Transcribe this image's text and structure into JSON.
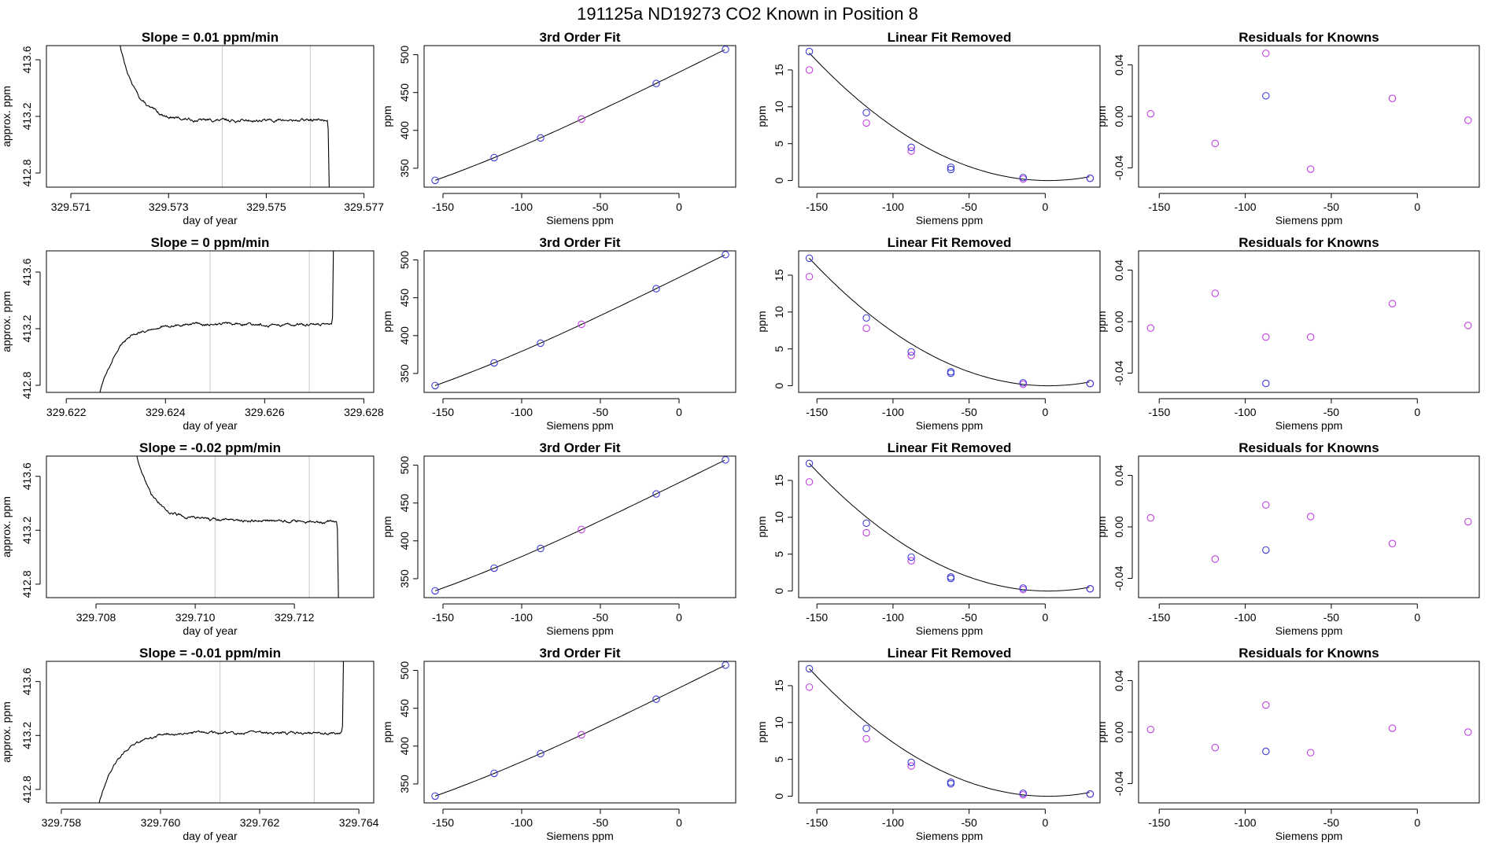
{
  "figure_title": "191125a      ND19273    CO2 Known in Position  8",
  "colors": {
    "line": "#000000",
    "box": "#000000",
    "vline": "#c8c8c8",
    "points_blue": "#3b3bd6",
    "points_magenta": "#c040e0"
  },
  "labels": {
    "day_of_year": "day of year",
    "approx_ppm": "approx. ppm",
    "siemens_ppm": "Siemens ppm",
    "ppm": "ppm",
    "fit_title": "3rd Order Fit",
    "lin_title": "Linear Fit Removed",
    "res_title": "Residuals for Knowns"
  },
  "chart_data": [
    {
      "row": 1,
      "panel": "time_series",
      "type": "line",
      "title": "Slope =  0.01  ppm/min",
      "xlabel": "day of year",
      "ylabel": "approx. ppm",
      "xlim": [
        329.5705,
        329.5772
      ],
      "ylim": [
        412.7,
        413.7
      ],
      "xticks": [
        "329.571",
        "329.573",
        "329.575",
        "329.577"
      ],
      "xtick_values": [
        329.571,
        329.573,
        329.575,
        329.577
      ],
      "yticks": [
        "412.8",
        "413.2",
        "413.6"
      ],
      "ytick_values": [
        412.8,
        413.2,
        413.6
      ],
      "vlines": [
        329.5741,
        329.5759
      ],
      "shape": "descending",
      "t_start": 329.5719,
      "t_end": 329.57625,
      "plateau": 413.17,
      "slope_level": 0.01
    },
    {
      "row": 1,
      "panel": "fit",
      "type": "scatter",
      "title": "3rd Order Fit",
      "xlabel": "Siemens ppm",
      "ylabel": "ppm",
      "xlim": [
        -162,
        36
      ],
      "ylim": [
        325,
        512
      ],
      "xticks": [
        "-150",
        "-100",
        "-50",
        "0"
      ],
      "xtick_values": [
        -150,
        -100,
        -50,
        0
      ],
      "yticks": [
        "350",
        "400",
        "450",
        "500"
      ],
      "ytick_values": [
        350,
        400,
        450,
        500
      ],
      "points_blue": [
        [
          -155,
          334
        ],
        [
          -117.5,
          364
        ],
        [
          -88,
          390
        ],
        [
          -14.5,
          462
        ],
        [
          29.5,
          507
        ]
      ],
      "points_magenta": [
        [
          -62,
          415
        ]
      ],
      "curve": "fit"
    },
    {
      "row": 1,
      "panel": "linear_removed",
      "type": "scatter",
      "title": "Linear Fit Removed",
      "xlabel": "Siemens ppm",
      "ylabel": "ppm",
      "xlim": [
        -162,
        36
      ],
      "ylim": [
        -0.9,
        18.3
      ],
      "xticks": [
        "-150",
        "-100",
        "-50",
        "0"
      ],
      "xtick_values": [
        -150,
        -100,
        -50,
        0
      ],
      "yticks": [
        "0",
        "5",
        "10",
        "15"
      ],
      "ytick_values": [
        0,
        5,
        10,
        15
      ],
      "points_blue": [
        [
          -155,
          17.5
        ],
        [
          -117.5,
          9.2
        ],
        [
          -88,
          4.5
        ],
        [
          -62,
          1.8
        ],
        [
          -62,
          1.5
        ],
        [
          -14.5,
          0.4
        ],
        [
          29.5,
          0.3
        ]
      ],
      "points_magenta": [
        [
          -155,
          15
        ],
        [
          -117.5,
          7.8
        ],
        [
          -88,
          4
        ],
        [
          -14.5,
          0.2
        ],
        [
          29.5,
          0.3
        ]
      ],
      "curve": "parabola"
    },
    {
      "row": 1,
      "panel": "residuals",
      "type": "scatter",
      "title": "Residuals for Knowns",
      "xlabel": "Siemens ppm",
      "ylabel": "ppm",
      "xlim": [
        -162,
        36
      ],
      "ylim": [
        -0.055,
        0.055
      ],
      "xticks": [
        "-150",
        "-100",
        "-50",
        "0"
      ],
      "xtick_values": [
        -150,
        -100,
        -50,
        0
      ],
      "yticks": [
        "-0.04",
        "0.00",
        "0.04"
      ],
      "ytick_values": [
        -0.04,
        0.0,
        0.04
      ],
      "points_blue": [
        [
          -88,
          0.016
        ]
      ],
      "points_magenta": [
        [
          -155,
          0.002
        ],
        [
          -117.5,
          -0.021
        ],
        [
          -88,
          0.049
        ],
        [
          -62,
          -0.041
        ],
        [
          -14.5,
          0.014
        ],
        [
          29.5,
          -0.003
        ]
      ]
    },
    {
      "row": 2,
      "panel": "time_series",
      "type": "line",
      "title": "Slope =  0  ppm/min",
      "xlabel": "day of year",
      "ylabel": "approx. ppm",
      "xlim": [
        329.6216,
        329.6282
      ],
      "ylim": [
        412.75,
        413.75
      ],
      "xticks": [
        "329.622",
        "329.624",
        "329.626",
        "329.628"
      ],
      "xtick_values": [
        329.622,
        329.624,
        329.626,
        329.628
      ],
      "yticks": [
        "412.8",
        "413.2",
        "413.6"
      ],
      "ytick_values": [
        412.8,
        413.2,
        413.6
      ],
      "vlines": [
        329.6249,
        329.6269
      ],
      "shape": "ascending",
      "t_start": 329.6226,
      "t_end": 329.62735,
      "plateau": 413.23,
      "slope_level": 0.0
    },
    {
      "row": 2,
      "panel": "fit",
      "type": "scatter",
      "title": "3rd Order Fit",
      "xlabel": "Siemens ppm",
      "ylabel": "ppm",
      "xlim": [
        -162,
        36
      ],
      "ylim": [
        325,
        512
      ],
      "xticks": [
        "-150",
        "-100",
        "-50",
        "0"
      ],
      "xtick_values": [
        -150,
        -100,
        -50,
        0
      ],
      "yticks": [
        "350",
        "400",
        "450",
        "500"
      ],
      "ytick_values": [
        350,
        400,
        450,
        500
      ],
      "points_blue": [
        [
          -155,
          334
        ],
        [
          -117.5,
          364
        ],
        [
          -88,
          390
        ],
        [
          -14.5,
          462
        ],
        [
          29.5,
          507
        ]
      ],
      "points_magenta": [
        [
          -62,
          415
        ]
      ],
      "curve": "fit"
    },
    {
      "row": 2,
      "panel": "linear_removed",
      "type": "scatter",
      "title": "Linear Fit Removed",
      "xlabel": "Siemens ppm",
      "ylabel": "ppm",
      "xlim": [
        -162,
        36
      ],
      "ylim": [
        -0.9,
        18.3
      ],
      "xticks": [
        "-150",
        "-100",
        "-50",
        "0"
      ],
      "xtick_values": [
        -150,
        -100,
        -50,
        0
      ],
      "yticks": [
        "0",
        "5",
        "10",
        "15"
      ],
      "ytick_values": [
        0,
        5,
        10,
        15
      ],
      "points_blue": [
        [
          -155,
          17.3
        ],
        [
          -117.5,
          9.2
        ],
        [
          -88,
          4.6
        ],
        [
          -62,
          1.9
        ],
        [
          -62,
          1.7
        ],
        [
          -14.5,
          0.4
        ],
        [
          29.5,
          0.3
        ]
      ],
      "points_magenta": [
        [
          -155,
          14.8
        ],
        [
          -117.5,
          7.8
        ],
        [
          -88,
          4.1
        ],
        [
          -14.5,
          0.2
        ],
        [
          29.5,
          0.3
        ]
      ],
      "curve": "parabola"
    },
    {
      "row": 2,
      "panel": "residuals",
      "type": "scatter",
      "title": "Residuals for Knowns",
      "xlabel": "Siemens ppm",
      "ylabel": "ppm",
      "xlim": [
        -162,
        36
      ],
      "ylim": [
        -0.055,
        0.055
      ],
      "xticks": [
        "-150",
        "-100",
        "-50",
        "0"
      ],
      "xtick_values": [
        -150,
        -100,
        -50,
        0
      ],
      "yticks": [
        "-0.04",
        "0.00",
        "0.04"
      ],
      "ytick_values": [
        -0.04,
        0.0,
        0.04
      ],
      "points_blue": [
        [
          -88,
          -0.048
        ]
      ],
      "points_magenta": [
        [
          -155,
          -0.005
        ],
        [
          -117.5,
          0.022
        ],
        [
          -88,
          -0.012
        ],
        [
          -62,
          -0.012
        ],
        [
          -14.5,
          0.014
        ],
        [
          29.5,
          -0.003
        ]
      ]
    },
    {
      "row": 3,
      "panel": "time_series",
      "type": "line",
      "title": "Slope =  -0.02  ppm/min",
      "xlabel": "day of year",
      "ylabel": "approx. ppm",
      "xlim": [
        329.707,
        329.7136
      ],
      "ylim": [
        412.7,
        413.75
      ],
      "xticks": [
        "329.708",
        "329.710",
        "329.712"
      ],
      "xtick_values": [
        329.708,
        329.71,
        329.712
      ],
      "yticks": [
        "412.8",
        "413.2",
        "413.6"
      ],
      "ytick_values": [
        412.8,
        413.2,
        413.6
      ],
      "vlines": [
        329.7104,
        329.7123
      ],
      "shape": "descending",
      "t_start": 329.7087,
      "t_end": 329.71285,
      "plateau": 413.27,
      "slope_level": -0.02
    },
    {
      "row": 3,
      "panel": "fit",
      "type": "scatter",
      "title": "3rd Order Fit",
      "xlabel": "Siemens ppm",
      "ylabel": "ppm",
      "xlim": [
        -162,
        36
      ],
      "ylim": [
        325,
        512
      ],
      "xticks": [
        "-150",
        "-100",
        "-50",
        "0"
      ],
      "xtick_values": [
        -150,
        -100,
        -50,
        0
      ],
      "yticks": [
        "350",
        "400",
        "450",
        "500"
      ],
      "ytick_values": [
        350,
        400,
        450,
        500
      ],
      "points_blue": [
        [
          -155,
          334
        ],
        [
          -117.5,
          364
        ],
        [
          -88,
          390
        ],
        [
          -14.5,
          462
        ],
        [
          29.5,
          507
        ]
      ],
      "points_magenta": [
        [
          -62,
          415
        ]
      ],
      "curve": "fit"
    },
    {
      "row": 3,
      "panel": "linear_removed",
      "type": "scatter",
      "title": "Linear Fit Removed",
      "xlabel": "Siemens ppm",
      "ylabel": "ppm",
      "xlim": [
        -162,
        36
      ],
      "ylim": [
        -0.9,
        18.3
      ],
      "xticks": [
        "-150",
        "-100",
        "-50",
        "0"
      ],
      "xtick_values": [
        -150,
        -100,
        -50,
        0
      ],
      "yticks": [
        "0",
        "5",
        "10",
        "15"
      ],
      "ytick_values": [
        0,
        5,
        10,
        15
      ],
      "points_blue": [
        [
          -155,
          17.3
        ],
        [
          -117.5,
          9.2
        ],
        [
          -88,
          4.6
        ],
        [
          -62,
          1.9
        ],
        [
          -62,
          1.7
        ],
        [
          -14.5,
          0.4
        ],
        [
          29.5,
          0.3
        ]
      ],
      "points_magenta": [
        [
          -155,
          14.8
        ],
        [
          -117.5,
          7.9
        ],
        [
          -88,
          4.1
        ],
        [
          -14.5,
          0.2
        ],
        [
          29.5,
          0.3
        ]
      ],
      "curve": "parabola"
    },
    {
      "row": 3,
      "panel": "residuals",
      "type": "scatter",
      "title": "Residuals for Knowns",
      "xlabel": "Siemens ppm",
      "ylabel": "ppm",
      "xlim": [
        -162,
        36
      ],
      "ylim": [
        -0.055,
        0.055
      ],
      "xticks": [
        "-150",
        "-100",
        "-50",
        "0"
      ],
      "xtick_values": [
        -150,
        -100,
        -50,
        0
      ],
      "yticks": [
        "-0.04",
        "0.00",
        "0.04"
      ],
      "ytick_values": [
        -0.04,
        0.0,
        0.04
      ],
      "points_blue": [
        [
          -88,
          -0.018
        ]
      ],
      "points_magenta": [
        [
          -155,
          0.007
        ],
        [
          -117.5,
          -0.025
        ],
        [
          -88,
          0.017
        ],
        [
          -62,
          0.008
        ],
        [
          -14.5,
          -0.013
        ],
        [
          29.5,
          0.004
        ]
      ]
    },
    {
      "row": 4,
      "panel": "time_series",
      "type": "line",
      "title": "Slope =  -0.01  ppm/min",
      "xlabel": "day of year",
      "ylabel": "approx. ppm",
      "xlim": [
        329.7577,
        329.7643
      ],
      "ylim": [
        412.7,
        413.75
      ],
      "xticks": [
        "329.758",
        "329.760",
        "329.762",
        "329.764"
      ],
      "xtick_values": [
        329.758,
        329.76,
        329.762,
        329.764
      ],
      "yticks": [
        "412.8",
        "413.2",
        "413.6"
      ],
      "ytick_values": [
        412.8,
        413.2,
        413.6
      ],
      "vlines": [
        329.7612,
        329.7631
      ],
      "shape": "ascending",
      "t_start": 329.7587,
      "t_end": 329.76365,
      "plateau": 413.22,
      "slope_level": -0.01
    },
    {
      "row": 4,
      "panel": "fit",
      "type": "scatter",
      "title": "3rd Order Fit",
      "xlabel": "Siemens ppm",
      "ylabel": "ppm",
      "xlim": [
        -162,
        36
      ],
      "ylim": [
        325,
        512
      ],
      "xticks": [
        "-150",
        "-100",
        "-50",
        "0"
      ],
      "xtick_values": [
        -150,
        -100,
        -50,
        0
      ],
      "yticks": [
        "350",
        "400",
        "450",
        "500"
      ],
      "ytick_values": [
        350,
        400,
        450,
        500
      ],
      "points_blue": [
        [
          -155,
          334
        ],
        [
          -117.5,
          364
        ],
        [
          -88,
          390
        ],
        [
          -14.5,
          462
        ],
        [
          29.5,
          507
        ]
      ],
      "points_magenta": [
        [
          -62,
          415
        ]
      ],
      "curve": "fit"
    },
    {
      "row": 4,
      "panel": "linear_removed",
      "type": "scatter",
      "title": "Linear Fit Removed",
      "xlabel": "Siemens ppm",
      "ylabel": "ppm",
      "xlim": [
        -162,
        36
      ],
      "ylim": [
        -0.9,
        18.3
      ],
      "xticks": [
        "-150",
        "-100",
        "-50",
        "0"
      ],
      "xtick_values": [
        -150,
        -100,
        -50,
        0
      ],
      "yticks": [
        "0",
        "5",
        "10",
        "15"
      ],
      "ytick_values": [
        0,
        5,
        10,
        15
      ],
      "points_blue": [
        [
          -155,
          17.3
        ],
        [
          -117.5,
          9.2
        ],
        [
          -88,
          4.6
        ],
        [
          -62,
          1.9
        ],
        [
          -62,
          1.7
        ],
        [
          -14.5,
          0.4
        ],
        [
          29.5,
          0.3
        ]
      ],
      "points_magenta": [
        [
          -155,
          14.8
        ],
        [
          -117.5,
          7.8
        ],
        [
          -88,
          4.1
        ],
        [
          -14.5,
          0.2
        ],
        [
          29.5,
          0.3
        ]
      ],
      "curve": "parabola"
    },
    {
      "row": 4,
      "panel": "residuals",
      "type": "scatter",
      "title": "Residuals for Knowns",
      "xlabel": "Siemens ppm",
      "ylabel": "ppm",
      "xlim": [
        -162,
        36
      ],
      "ylim": [
        -0.055,
        0.055
      ],
      "xticks": [
        "-150",
        "-100",
        "-50",
        "0"
      ],
      "xtick_values": [
        -150,
        -100,
        -50,
        0
      ],
      "yticks": [
        "-0.04",
        "0.00",
        "0.04"
      ],
      "ytick_values": [
        -0.04,
        0.0,
        0.04
      ],
      "points_blue": [
        [
          -88,
          -0.015
        ]
      ],
      "points_magenta": [
        [
          -155,
          0.002
        ],
        [
          -117.5,
          -0.012
        ],
        [
          -88,
          0.021
        ],
        [
          -62,
          -0.016
        ],
        [
          -14.5,
          0.003
        ],
        [
          29.5,
          0.0
        ]
      ]
    }
  ]
}
